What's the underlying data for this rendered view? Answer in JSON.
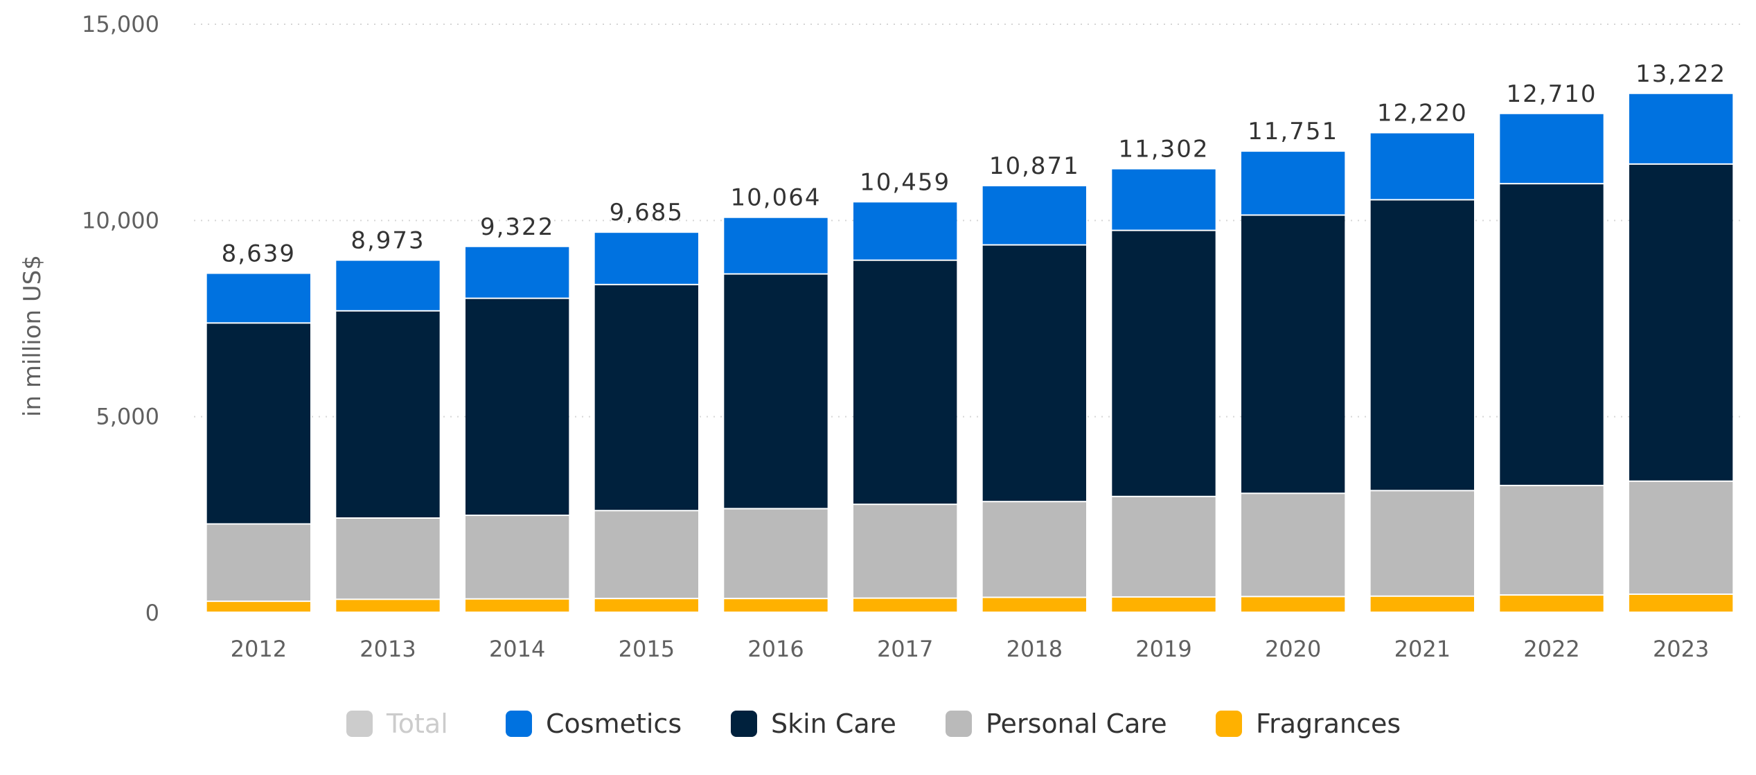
{
  "chart_data": {
    "type": "bar",
    "stacked": true,
    "title": "",
    "xlabel": "",
    "ylabel": "in million US$",
    "ylim": [
      0,
      15000
    ],
    "yticks": [
      0,
      5000,
      10000,
      15000
    ],
    "ytick_labels": [
      "0",
      "5,000",
      "10,000",
      "15,000"
    ],
    "grid": true,
    "legend_position": "bottom",
    "categories": [
      "2012",
      "2013",
      "2014",
      "2015",
      "2016",
      "2017",
      "2018",
      "2019",
      "2020",
      "2021",
      "2022",
      "2023"
    ],
    "series": [
      {
        "name": "Fragrances",
        "color": "#ffb100",
        "values": [
          280,
          330,
          340,
          350,
          350,
          360,
          380,
          390,
          400,
          410,
          440,
          460
        ]
      },
      {
        "name": "Personal Care",
        "color": "#bababa",
        "values": [
          1970,
          2070,
          2130,
          2240,
          2290,
          2390,
          2440,
          2560,
          2630,
          2690,
          2790,
          2880
        ]
      },
      {
        "name": "Skin Care",
        "color": "#00213d",
        "values": [
          5120,
          5280,
          5530,
          5760,
          5980,
          6220,
          6540,
          6780,
          7090,
          7410,
          7690,
          8080
        ]
      },
      {
        "name": "Cosmetics",
        "color": "#0072e0",
        "values": [
          1269,
          1293,
          1322,
          1335,
          1444,
          1489,
          1511,
          1572,
          1631,
          1710,
          1790,
          1802
        ]
      }
    ],
    "totals": [
      8639,
      8973,
      9322,
      9685,
      10064,
      10459,
      10871,
      11302,
      11751,
      12220,
      12710,
      13222
    ],
    "total_labels": [
      "8,639",
      "8,973",
      "9,322",
      "9,685",
      "10,064",
      "10,459",
      "10,871",
      "11,302",
      "11,751",
      "12,220",
      "12,710",
      "13,222"
    ],
    "legend": [
      {
        "name": "Total",
        "color": "#cccccc",
        "hidden": true
      },
      {
        "name": "Cosmetics",
        "color": "#0072e0",
        "hidden": false
      },
      {
        "name": "Skin Care",
        "color": "#00213d",
        "hidden": false
      },
      {
        "name": "Personal Care",
        "color": "#bababa",
        "hidden": false
      },
      {
        "name": "Fragrances",
        "color": "#ffb100",
        "hidden": false
      }
    ]
  }
}
